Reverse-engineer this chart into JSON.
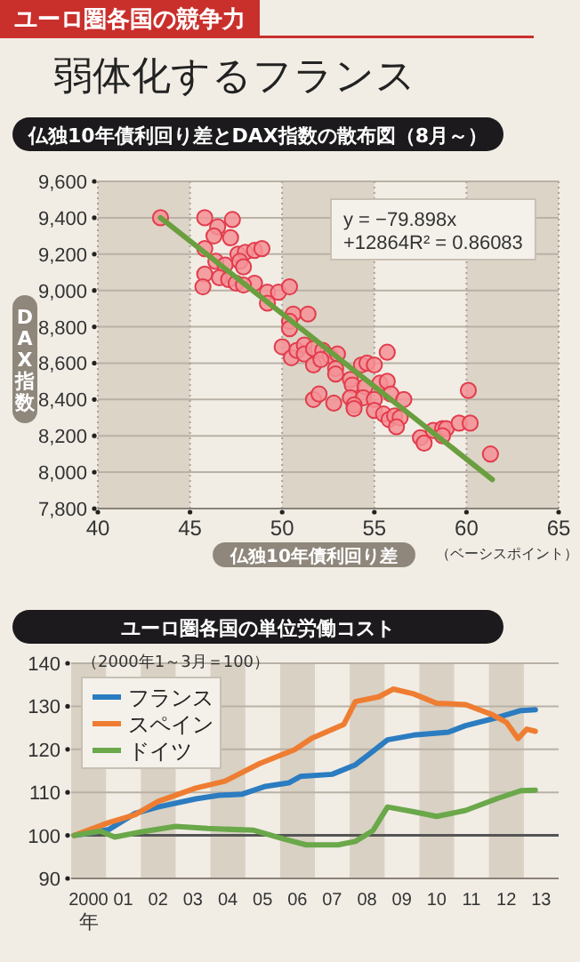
{
  "chart_data": [
    {
      "type": "other",
      "title": "弱体化するフランス",
      "subtitle": "ユーロ圏各国の競争力"
    },
    {
      "type": "scatter",
      "title": "仏独10年債利回り差とDAX指数の散布図（8月～）",
      "xlabel": "仏独10年債利回り差",
      "ylabel": "DAX指数",
      "annotations": [
        "y = −79.898x +12864R² = 0.86083",
        "（ベーシスポイント）"
      ],
      "xlim": [
        40,
        65
      ],
      "xticks": [
        40,
        45,
        50,
        55,
        60,
        65
      ],
      "ylim": [
        7800,
        9600
      ],
      "yticks": [
        {
          "value": 7800,
          "label": "7,800"
        },
        {
          "value": 8000,
          "label": "8,000"
        },
        {
          "value": 8200,
          "label": "8,200"
        },
        {
          "value": 8400,
          "label": "8,400"
        },
        {
          "value": 8600,
          "label": "8,600"
        },
        {
          "value": 8800,
          "label": "8,800"
        },
        {
          "value": 9000,
          "label": "9,000"
        },
        {
          "value": 9200,
          "label": "9,200"
        },
        {
          "value": 9400,
          "label": "9,400"
        },
        {
          "value": 9600,
          "label": "9,600"
        }
      ],
      "grid": true,
      "bands": [
        {
          "axis": "x",
          "from": 40,
          "to": 45,
          "color": "#dcd4c7"
        },
        {
          "axis": "x",
          "from": 50,
          "to": 55,
          "color": "#dcd4c7"
        },
        {
          "axis": "x",
          "from": 60,
          "to": 65,
          "color": "#dcd4c7"
        }
      ],
      "series": [
        {
          "type": "scatter",
          "marker": "circle",
          "color": "#e23c4c",
          "x": [
            43.4,
            45.8,
            47.3,
            46.5,
            46.3,
            47.2,
            45.8,
            47.6,
            48.0,
            48.5,
            48.9,
            46.4,
            46.9,
            47.7,
            47.9,
            45.8,
            46.6,
            47.1,
            47.5,
            48.5,
            45.7,
            47.9,
            49.2,
            49.8,
            50.4,
            49.2,
            50.6,
            51.4,
            50.4,
            50.4,
            50.0,
            50.5,
            50.8,
            51.2,
            51.2,
            51.7,
            52.2,
            52.6,
            53.0,
            51.7,
            52.1,
            52.9,
            52.9,
            54.3,
            54.6,
            55.0,
            55.7,
            53.7,
            53.8,
            55.3,
            55.7,
            54.5,
            55.9,
            56.6,
            51.7,
            52.0,
            52.8,
            53.7,
            54.4,
            55.0,
            53.9,
            53.9,
            55.0,
            55.5,
            55.8,
            56.1,
            56.4,
            56.2,
            57.5,
            57.7,
            58.2,
            58.7,
            58.9,
            58.7,
            59.6,
            60.2,
            60.1,
            61.3
          ],
          "values": [
            9400,
            9400,
            9390,
            9350,
            9300,
            9290,
            9230,
            9200,
            9210,
            9220,
            9230,
            9160,
            9140,
            9160,
            9130,
            9090,
            9070,
            9060,
            9040,
            9040,
            9020,
            9030,
            8990,
            8990,
            9020,
            8930,
            8870,
            8870,
            8830,
            8790,
            8690,
            8630,
            8670,
            8700,
            8650,
            8680,
            8670,
            8640,
            8650,
            8590,
            8620,
            8570,
            8540,
            8590,
            8600,
            8590,
            8660,
            8510,
            8480,
            8490,
            8500,
            8470,
            8430,
            8400,
            8400,
            8430,
            8380,
            8410,
            8410,
            8400,
            8370,
            8350,
            8340,
            8320,
            8290,
            8310,
            8300,
            8250,
            8190,
            8160,
            8230,
            8240,
            8240,
            8200,
            8270,
            8270,
            8450,
            8100
          ]
        },
        {
          "type": "line",
          "color": "#6a9e3f",
          "x": [
            43.4,
            61.4
          ],
          "values": [
            9400,
            7960
          ]
        }
      ]
    },
    {
      "type": "line",
      "title": "ユーロ圏各国の単位労働コスト",
      "xlabel": "年",
      "annotations": [
        "（2000年1～3月＝100）"
      ],
      "xlim": [
        "2000",
        "2014"
      ],
      "xticks": [
        {
          "value": "2000-07",
          "label": "2000"
        },
        {
          "value": "2001-07",
          "label": "01"
        },
        {
          "value": "2002-07",
          "label": "02"
        },
        {
          "value": "2003-07",
          "label": "03"
        },
        {
          "value": "2004-07",
          "label": "04"
        },
        {
          "value": "2005-07",
          "label": "05"
        },
        {
          "value": "2006-07",
          "label": "06"
        },
        {
          "value": "2007-07",
          "label": "07"
        },
        {
          "value": "2008-07",
          "label": "08"
        },
        {
          "value": "2009-07",
          "label": "09"
        },
        {
          "value": "2010-07",
          "label": "10"
        },
        {
          "value": "2011-07",
          "label": "11"
        },
        {
          "value": "2012-07",
          "label": "12"
        },
        {
          "value": "2013-07",
          "label": "13"
        }
      ],
      "ylim": [
        90,
        140
      ],
      "yticks": [
        90,
        100,
        110,
        120,
        130,
        140
      ],
      "grid": "y",
      "legend": "top left",
      "ref_lines": [
        {
          "axis": "y",
          "value": 100,
          "color": "#555555"
        }
      ],
      "bands": [
        {
          "axis": "x",
          "from": "2000",
          "to": "2001",
          "color": "#d9d1c4"
        },
        {
          "axis": "x",
          "from": "2002",
          "to": "2003",
          "color": "#d9d1c4"
        },
        {
          "axis": "x",
          "from": "2004",
          "to": "2005",
          "color": "#d9d1c4"
        },
        {
          "axis": "x",
          "from": "2006",
          "to": "2007",
          "color": "#d9d1c4"
        },
        {
          "axis": "x",
          "from": "2008",
          "to": "2009",
          "color": "#d9d1c4"
        },
        {
          "axis": "x",
          "from": "2010",
          "to": "2011",
          "color": "#d9d1c4"
        },
        {
          "axis": "x",
          "from": "2012",
          "to": "2013",
          "color": "#d9d1c4"
        }
      ],
      "series": [
        {
          "name": "フランス",
          "color": "#2b7cc0",
          "x": [
            "2000-02",
            "2000-07",
            "2001-02",
            "2001-11",
            "2002-07",
            "2003-08",
            "2004-04",
            "2004-12",
            "2005-08",
            "2006-04",
            "2006-08",
            "2007-07",
            "2008-03",
            "2008-07",
            "2009-02",
            "2009-11",
            "2010-11",
            "2011-05",
            "2012-04",
            "2012-12",
            "2013-05"
          ],
          "values": [
            100,
            100.5,
            101.4,
            105.1,
            106.6,
            108.5,
            109.3,
            109.6,
            111.4,
            112.2,
            113.7,
            114.2,
            116.4,
            118.5,
            122.2,
            123.3,
            124.0,
            125.5,
            127.4,
            129.0,
            129.2
          ]
        },
        {
          "name": "スペイン",
          "color": "#ee7d32",
          "x": [
            "2000-02",
            "2001-02",
            "2001-11",
            "2002-07",
            "2003-08",
            "2004-06",
            "2005-06",
            "2006-06",
            "2006-12",
            "2007-11",
            "2008-03",
            "2008-11",
            "2009-04",
            "2009-11",
            "2010-07",
            "2011-05",
            "2012-02",
            "2012-07",
            "2012-11",
            "2013-02",
            "2013-05"
          ],
          "values": [
            100,
            103.0,
            104.8,
            107.9,
            111.0,
            112.6,
            116.7,
            119.9,
            122.6,
            125.8,
            131.1,
            132.2,
            134.0,
            132.9,
            130.7,
            130.4,
            128.1,
            126.3,
            122.5,
            124.7,
            124.2
          ]
        },
        {
          "name": "ドイツ",
          "color": "#6aa84a",
          "x": [
            "2000-02",
            "2000-11",
            "2001-04",
            "2002-01",
            "2003-01",
            "2003-12",
            "2005-04",
            "2006-02",
            "2006-10",
            "2007-09",
            "2008-03",
            "2008-09",
            "2009-02",
            "2009-11",
            "2010-07",
            "2011-05",
            "2012-04",
            "2012-12",
            "2013-05"
          ],
          "values": [
            100,
            101.0,
            99.6,
            100.8,
            102.1,
            101.6,
            101.2,
            99.2,
            97.8,
            97.8,
            98.6,
            101.1,
            106.6,
            105.5,
            104.4,
            105.8,
            108.6,
            110.4,
            110.5
          ]
        }
      ]
    }
  ]
}
